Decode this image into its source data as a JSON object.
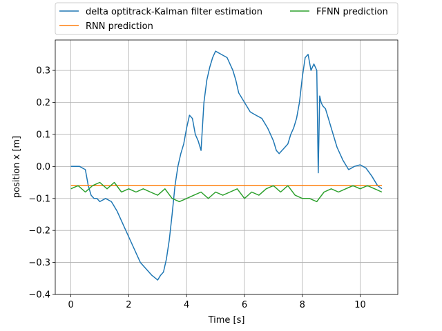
{
  "chart_data": {
    "type": "line",
    "title": "",
    "xlabel": "Time [s]",
    "ylabel": "position x [m]",
    "xlim": [
      -0.54,
      11.3
    ],
    "ylim": [
      -0.4,
      0.395
    ],
    "xticks": [
      0,
      2,
      4,
      6,
      8,
      10
    ],
    "yticks": [
      -0.4,
      -0.3,
      -0.2,
      -0.1,
      0.0,
      0.1,
      0.2,
      0.3
    ],
    "xtick_labels": [
      "0",
      "2",
      "4",
      "6",
      "8",
      "10"
    ],
    "ytick_labels": [
      "−0.4",
      "−0.3",
      "−0.2",
      "−0.1",
      "0.0",
      "0.1",
      "0.2",
      "0.3"
    ],
    "grid": true,
    "legend_position": "above-plot",
    "series": [
      {
        "name": "delta optitrack-Kalman filter estimation",
        "color": "#1f77b4",
        "x": [
          0.0,
          0.3,
          0.5,
          0.6,
          0.7,
          0.8,
          0.9,
          1.0,
          1.2,
          1.4,
          1.6,
          1.8,
          2.0,
          2.2,
          2.4,
          2.6,
          2.8,
          3.0,
          3.1,
          3.2,
          3.3,
          3.4,
          3.5,
          3.6,
          3.7,
          3.8,
          3.9,
          4.0,
          4.1,
          4.2,
          4.3,
          4.4,
          4.5,
          4.6,
          4.7,
          4.8,
          4.9,
          5.0,
          5.2,
          5.4,
          5.6,
          5.7,
          5.8,
          6.0,
          6.2,
          6.4,
          6.6,
          6.8,
          7.0,
          7.1,
          7.2,
          7.3,
          7.4,
          7.5,
          7.6,
          7.7,
          7.8,
          7.9,
          8.0,
          8.1,
          8.2,
          8.3,
          8.4,
          8.5,
          8.55,
          8.6,
          8.65,
          8.7,
          8.8,
          8.9,
          9.0,
          9.2,
          9.4,
          9.6,
          9.8,
          10.0,
          10.2,
          10.4,
          10.6,
          10.75
        ],
        "y": [
          0.0,
          0.0,
          -0.01,
          -0.06,
          -0.09,
          -0.1,
          -0.1,
          -0.11,
          -0.1,
          -0.11,
          -0.14,
          -0.18,
          -0.22,
          -0.26,
          -0.3,
          -0.32,
          -0.34,
          -0.355,
          -0.34,
          -0.33,
          -0.29,
          -0.23,
          -0.15,
          -0.06,
          0.0,
          0.04,
          0.07,
          0.12,
          0.16,
          0.15,
          0.1,
          0.08,
          0.05,
          0.2,
          0.27,
          0.31,
          0.34,
          0.36,
          0.35,
          0.34,
          0.3,
          0.27,
          0.23,
          0.2,
          0.17,
          0.16,
          0.15,
          0.12,
          0.08,
          0.05,
          0.04,
          0.05,
          0.06,
          0.07,
          0.1,
          0.12,
          0.15,
          0.2,
          0.28,
          0.34,
          0.35,
          0.3,
          0.32,
          0.3,
          -0.02,
          0.22,
          0.2,
          0.19,
          0.18,
          0.15,
          0.12,
          0.06,
          0.02,
          -0.01,
          0.0,
          0.005,
          -0.005,
          -0.03,
          -0.06,
          -0.07
        ]
      },
      {
        "name": "RNN prediction",
        "color": "#ff7f0e",
        "x": [
          0.0,
          0.2,
          0.6,
          1.0,
          2.0,
          3.0,
          4.0,
          5.0,
          6.0,
          7.0,
          8.0,
          9.0,
          10.0,
          10.75
        ],
        "y": [
          -0.06,
          -0.06,
          -0.06,
          -0.06,
          -0.06,
          -0.06,
          -0.06,
          -0.06,
          -0.06,
          -0.06,
          -0.06,
          -0.06,
          -0.06,
          -0.06
        ]
      },
      {
        "name": "FFNN prediction",
        "color": "#2ca02c",
        "x": [
          0.0,
          0.25,
          0.5,
          0.75,
          1.0,
          1.25,
          1.5,
          1.75,
          2.0,
          2.25,
          2.5,
          2.75,
          3.0,
          3.25,
          3.5,
          3.75,
          4.0,
          4.25,
          4.5,
          4.75,
          5.0,
          5.25,
          5.5,
          5.75,
          6.0,
          6.25,
          6.5,
          6.75,
          7.0,
          7.25,
          7.5,
          7.75,
          8.0,
          8.25,
          8.5,
          8.75,
          9.0,
          9.25,
          9.5,
          9.75,
          10.0,
          10.25,
          10.5,
          10.75
        ],
        "y": [
          -0.07,
          -0.06,
          -0.08,
          -0.06,
          -0.05,
          -0.07,
          -0.05,
          -0.08,
          -0.07,
          -0.08,
          -0.07,
          -0.08,
          -0.09,
          -0.07,
          -0.1,
          -0.11,
          -0.1,
          -0.09,
          -0.08,
          -0.1,
          -0.08,
          -0.09,
          -0.08,
          -0.07,
          -0.1,
          -0.08,
          -0.09,
          -0.07,
          -0.06,
          -0.08,
          -0.06,
          -0.09,
          -0.1,
          -0.1,
          -0.11,
          -0.08,
          -0.07,
          -0.08,
          -0.07,
          -0.06,
          -0.07,
          -0.06,
          -0.07,
          -0.08
        ]
      }
    ]
  }
}
